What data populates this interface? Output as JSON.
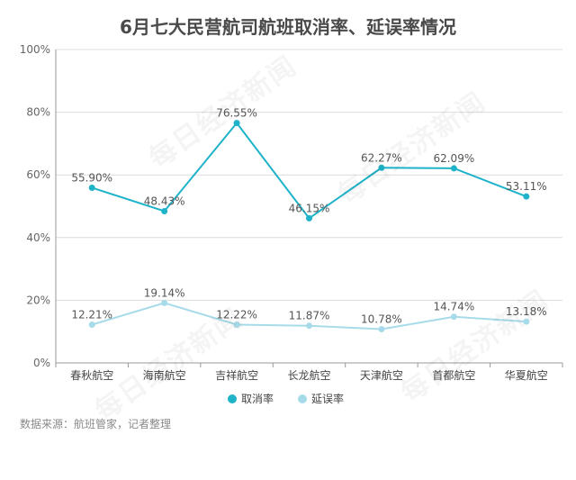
{
  "source_note": "数据来源：航班管家，记者整理",
  "watermark": "每日经济新闻",
  "chart_data": {
    "type": "line",
    "title": "6月七大民营航司航班取消率、延误率情况",
    "categories": [
      "春秋航空",
      "海南航空",
      "吉祥航空",
      "长龙航空",
      "天津航空",
      "首都航空",
      "华夏航空"
    ],
    "yticks": [
      "0%",
      "20%",
      "40%",
      "60%",
      "80%",
      "100%"
    ],
    "ylim": [
      0,
      100
    ],
    "legend_position": "bottom-center",
    "grid": "horizontal",
    "series": [
      {
        "name": "取消率",
        "color": "#1fb3c9",
        "values": [
          55.9,
          48.43,
          76.55,
          46.15,
          62.27,
          62.09,
          53.11
        ],
        "labels": [
          "55.90%",
          "48.43%",
          "76.55%",
          "46.15%",
          "62.27%",
          "62.09%",
          "53.11%"
        ]
      },
      {
        "name": "延误率",
        "color": "#a8dbe9",
        "values": [
          12.21,
          19.14,
          12.22,
          11.87,
          10.78,
          14.74,
          13.18
        ],
        "labels": [
          "12.21%",
          "19.14%",
          "12.22%",
          "11.87%",
          "10.78%",
          "14.74%",
          "13.18%"
        ]
      }
    ]
  }
}
